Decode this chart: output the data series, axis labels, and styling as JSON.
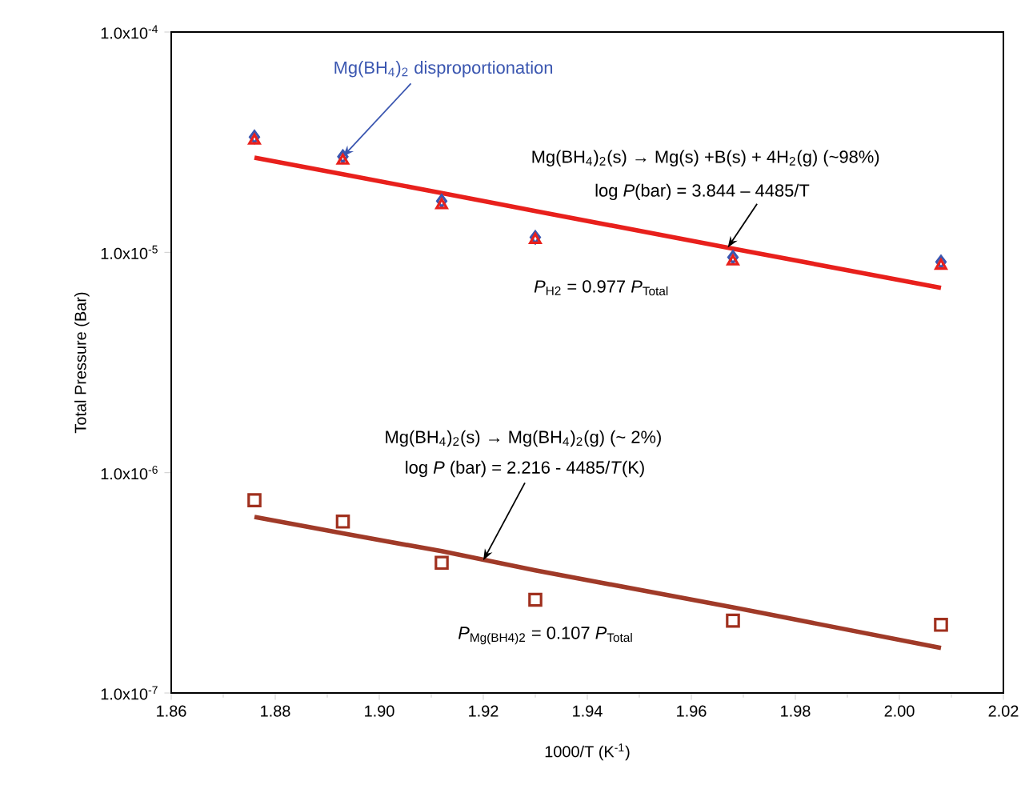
{
  "chart_data": {
    "type": "scatter",
    "xlabel": "1000/T (K$^{-1}$)",
    "ylabel": "Total Pressure (Bar)",
    "xlim": [
      1.86,
      2.02
    ],
    "ylim": [
      1e-07,
      0.0001
    ],
    "log": "y",
    "xticks": [
      {
        "value": 1.86,
        "label": "1.86"
      },
      {
        "value": 1.88,
        "label": "1.88"
      },
      {
        "value": 1.9,
        "label": "1.90"
      },
      {
        "value": 1.92,
        "label": "1.92"
      },
      {
        "value": 1.94,
        "label": "1.94"
      },
      {
        "value": 1.96,
        "label": "1.96"
      },
      {
        "value": 1.98,
        "label": "1.98"
      },
      {
        "value": 2.0,
        "label": "2.00"
      },
      {
        "value": 2.02,
        "label": "2.02"
      }
    ],
    "yticks": [
      {
        "value": 1e-07,
        "label": "1.0x10$^{-7}$"
      },
      {
        "value": 1e-06,
        "label": "1.0x10$^{-6}$"
      },
      {
        "value": 1e-05,
        "label": "1.0x10$^{-5}$"
      },
      {
        "value": 0.0001,
        "label": "1.0x10$^{-4}$"
      }
    ],
    "x": [
      1.876,
      1.893,
      1.912,
      1.93,
      1.968,
      2.008
    ],
    "series": [
      {
        "marker": "diamond",
        "color": "#3a56b0",
        "values": [
          3.34e-05,
          2.72e-05,
          1.71e-05,
          1.17e-05,
          9.5e-06,
          9.05e-06
        ]
      },
      {
        "marker": "triangle",
        "color": "#e8201c",
        "values": [
          3.22e-05,
          2.61e-05,
          1.64e-05,
          1.14e-05,
          9.1e-06,
          8.7e-06
        ]
      },
      {
        "type": "line",
        "marker": "none",
        "color": "#e8201c",
        "values": [
          2.69e-05,
          2.26e-05,
          1.86e-05,
          1.54e-05,
          1.04e-05,
          6.9e-06
        ]
      },
      {
        "marker": "square",
        "color": "#a0301e",
        "values": [
          7.5e-07,
          6e-07,
          3.9e-07,
          2.65e-07,
          2.13e-07,
          2.04e-07
        ]
      },
      {
        "type": "line",
        "marker": "none",
        "color": "#a03a28",
        "values": [
          6.3e-07,
          5.3e-07,
          4.4e-07,
          3.6e-07,
          2.45e-07,
          1.6e-07
        ]
      }
    ],
    "annotations": [
      {
        "text": "Mg(BH$_{4}$)$_{2}$ disproportionation",
        "x": 1.893,
        "y": 2.72e-05
      },
      "Mg(BH$_{4}$)$_{2}$(s) → Mg(s) +B(s) + 4H$_{2}$(g) (~98%)",
      {
        "text": "log *P*(bar) = 3.844 – 4485/T",
        "x": 1.967,
        "y": 1.05e-05
      },
      "*P*$_{H2}$ = 0.977 *P*$_{Total}$",
      "Mg(BH$_{4}$)$_{2}$(s) → Mg(BH$_{4}$)$_{2}$(g) (~ 2%)",
      {
        "text": "log *P* (bar) = 2.216 - 4485/*T*(K)",
        "x": 1.92,
        "y": 4e-07
      },
      "*P*$_{Mg(BH4)2}$ = 0.107 *P*$_{Total}$"
    ]
  }
}
